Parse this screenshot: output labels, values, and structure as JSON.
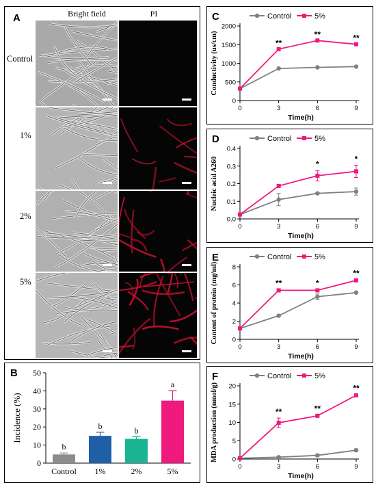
{
  "panel_a": {
    "letter": "A",
    "col_headers": [
      "Bright field",
      "PI"
    ],
    "rows": [
      "Control",
      "1%",
      "2%",
      "5%"
    ]
  },
  "panel_b": {
    "letter": "B",
    "sig_letters": [
      "b",
      "b",
      "b",
      "a"
    ],
    "colors": [
      "#8c8c8c",
      "#1f5fa8",
      "#1ab394",
      "#f0197d"
    ]
  },
  "panel_c": {
    "letter": "C"
  },
  "panel_d": {
    "letter": "D",
    "stars": [
      "*",
      "*"
    ]
  },
  "panel_e": {
    "letter": "E",
    "stars": [
      "**",
      "*",
      "**"
    ]
  },
  "panel_f": {
    "letter": "F",
    "stars": [
      "**",
      "**",
      "**"
    ]
  },
  "series_colors": {
    "control": "#808080",
    "treat": "#f0197d"
  },
  "chart_data": [
    {
      "id": "B",
      "type": "bar",
      "categories": [
        "Control",
        "1%",
        "2%",
        "5%"
      ],
      "values": [
        4.8,
        15.1,
        13.4,
        34.6
      ],
      "errors": [
        0.8,
        2.0,
        1.2,
        5.5
      ],
      "ylabel": "Incidence (%)",
      "ylim": [
        0,
        50
      ],
      "yticks": [
        0,
        10,
        20,
        30,
        40,
        50
      ]
    },
    {
      "id": "C",
      "type": "line",
      "x": [
        0,
        3,
        6,
        9
      ],
      "series": [
        {
          "name": "Control",
          "values": [
            320,
            860,
            890,
            910
          ]
        },
        {
          "name": "5%",
          "values": [
            320,
            1380,
            1610,
            1510
          ]
        }
      ],
      "stars": [
        "**",
        "**",
        "**"
      ],
      "xlabel": "Time(h)",
      "ylabel": "Conductivity (us/cm)",
      "ylim": [
        0,
        2000
      ],
      "yticks": [
        0,
        500,
        1000,
        1500,
        2000
      ]
    },
    {
      "id": "D",
      "type": "line",
      "x": [
        0,
        3,
        6,
        9
      ],
      "series": [
        {
          "name": "Control",
          "values": [
            0.025,
            0.11,
            0.145,
            0.155
          ],
          "errors": [
            0,
            0.035,
            0.005,
            0.02
          ]
        },
        {
          "name": "5%",
          "values": [
            0.025,
            0.187,
            0.245,
            0.27
          ],
          "errors": [
            0,
            0.008,
            0.03,
            0.035
          ]
        }
      ],
      "xlabel": "Time(h)",
      "ylabel": "Nucleic acid A260",
      "ylim": [
        0,
        0.4
      ],
      "yticks": [
        0.0,
        0.1,
        0.2,
        0.3,
        0.4
      ]
    },
    {
      "id": "E",
      "type": "line",
      "x": [
        0,
        3,
        6,
        9
      ],
      "series": [
        {
          "name": "Control",
          "values": [
            1.2,
            2.6,
            4.7,
            5.15
          ],
          "errors": [
            0,
            0.1,
            0.3,
            0.1
          ]
        },
        {
          "name": "5%",
          "values": [
            1.2,
            5.4,
            5.4,
            6.5
          ],
          "errors": [
            0,
            0.1,
            0.1,
            0.1
          ]
        }
      ],
      "xlabel": "Time(h)",
      "ylabel": "Content of protein (mg/ml)",
      "ylim": [
        0,
        8
      ],
      "yticks": [
        0,
        2,
        4,
        6,
        8
      ]
    },
    {
      "id": "F",
      "type": "line",
      "x": [
        0,
        3,
        6,
        9
      ],
      "series": [
        {
          "name": "Control",
          "values": [
            0.2,
            0.5,
            1.0,
            2.4
          ],
          "errors": [
            0,
            0.2,
            0.3,
            0.4
          ]
        },
        {
          "name": "5%",
          "values": [
            0.2,
            9.9,
            11.8,
            17.4
          ],
          "errors": [
            0,
            1.3,
            0.3,
            0.3
          ]
        }
      ],
      "xlabel": "Time(h)",
      "ylabel": "MDA production (nmol/g)",
      "ylim": [
        0,
        20
      ],
      "yticks": [
        0,
        5,
        10,
        15,
        20
      ]
    }
  ]
}
